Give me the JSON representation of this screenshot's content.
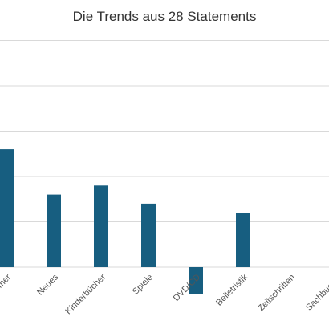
{
  "chart_data": {
    "type": "bar",
    "title": "Die Trends aus 28 Statements",
    "categories": [
      "mer",
      "Neues",
      "Kinderbücher",
      "Spiele",
      "DVD/CD",
      "Belletristik",
      "Zeitschriften",
      "Sachbuch F"
    ],
    "values": [
      2.6,
      1.6,
      1.8,
      1.4,
      -0.6,
      1.2,
      0,
      0
    ],
    "ylim": [
      -1.4,
      5
    ],
    "grid": true,
    "colors": {
      "bar": "#175e80",
      "grid": "#d9d9d9"
    }
  }
}
